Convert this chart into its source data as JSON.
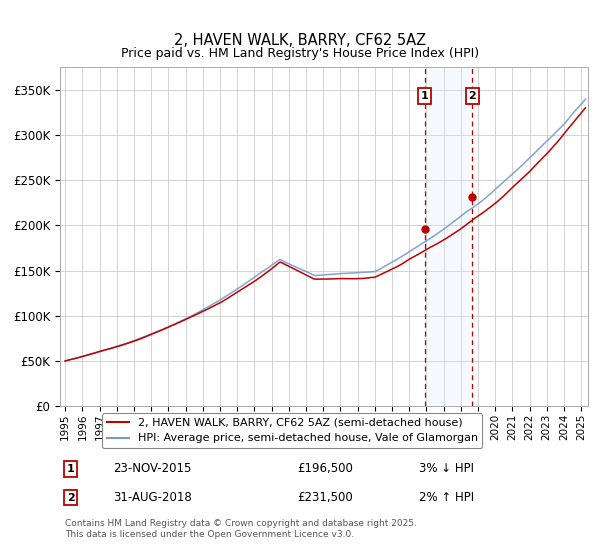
{
  "title": "2, HAVEN WALK, BARRY, CF62 5AZ",
  "subtitle": "Price paid vs. HM Land Registry's House Price Index (HPI)",
  "ylim": [
    0,
    375000
  ],
  "yticks": [
    0,
    50000,
    100000,
    150000,
    200000,
    250000,
    300000,
    350000
  ],
  "ytick_labels": [
    "£0",
    "£50K",
    "£100K",
    "£150K",
    "£200K",
    "£250K",
    "£300K",
    "£350K"
  ],
  "hpi_color": "#7799cc",
  "price_color": "#bb0000",
  "sale1_date": "23-NOV-2015",
  "sale1_price": 196500,
  "sale1_hpi_diff": "3% ↓ HPI",
  "sale2_date": "31-AUG-2018",
  "sale2_price": 231500,
  "sale2_hpi_diff": "2% ↑ HPI",
  "legend_label1": "2, HAVEN WALK, BARRY, CF62 5AZ (semi-detached house)",
  "legend_label2": "HPI: Average price, semi-detached house, Vale of Glamorgan",
  "footer": "Contains HM Land Registry data © Crown copyright and database right 2025.\nThis data is licensed under the Open Government Licence v3.0.",
  "sale1_x": 2015.9,
  "sale2_x": 2018.67,
  "background_color": "#ffffff",
  "grid_color": "#cccccc",
  "shade_color": "#ddeeff"
}
